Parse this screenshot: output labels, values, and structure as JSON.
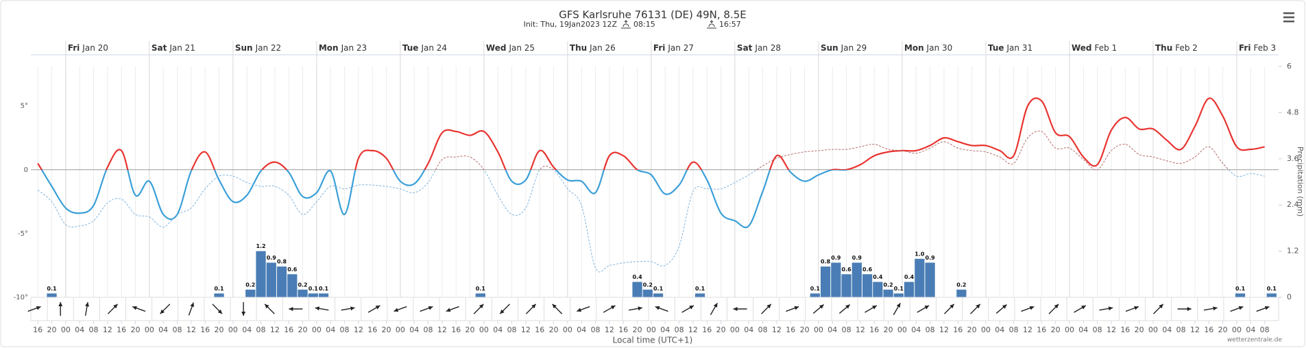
{
  "chart_data": {
    "type": "line",
    "title": "GFS Karlsruhe 76131 (DE) 49N, 8.5E",
    "subtitle": "Init: Thu, 19Jan2023 12Z",
    "sunrise": "08:15",
    "sunset": "16:57",
    "xlabel": "Local time (UTC+1)",
    "y2label": "Precipitation (mm)",
    "credit": "wetterzentrale.de",
    "days": [
      {
        "x": 0,
        "weekday": "Fri",
        "date": "Jan 20"
      },
      {
        "x": 24,
        "weekday": "Sat",
        "date": "Jan 21"
      },
      {
        "x": 48,
        "weekday": "Sun",
        "date": "Jan 22"
      },
      {
        "x": 72,
        "weekday": "Mon",
        "date": "Jan 23"
      },
      {
        "x": 96,
        "weekday": "Tue",
        "date": "Jan 24"
      },
      {
        "x": 120,
        "weekday": "Wed",
        "date": "Jan 25"
      },
      {
        "x": 144,
        "weekday": "Thu",
        "date": "Jan 26"
      },
      {
        "x": 168,
        "weekday": "Fri",
        "date": "Jan 27"
      },
      {
        "x": 192,
        "weekday": "Sat",
        "date": "Jan 28"
      },
      {
        "x": 216,
        "weekday": "Sun",
        "date": "Jan 29"
      },
      {
        "x": 240,
        "weekday": "Mon",
        "date": "Jan 30"
      },
      {
        "x": 264,
        "weekday": "Tue",
        "date": "Jan 31"
      },
      {
        "x": 288,
        "weekday": "Wed",
        "date": "Feb 1"
      },
      {
        "x": 312,
        "weekday": "Thu",
        "date": "Feb 2"
      },
      {
        "x": 336,
        "weekday": "Fri",
        "date": "Feb 3"
      }
    ],
    "xlim": [
      -10,
      348
    ],
    "xticks": [
      {
        "value": -8,
        "label": "16"
      },
      {
        "value": -4,
        "label": "20"
      },
      {
        "value": 0,
        "label": "00"
      },
      {
        "value": 4,
        "label": "04"
      },
      {
        "value": 8,
        "label": "08"
      },
      {
        "value": 12,
        "label": "12"
      },
      {
        "value": 16,
        "label": "16"
      },
      {
        "value": 20,
        "label": "20"
      },
      {
        "value": 24,
        "label": "00"
      },
      {
        "value": 28,
        "label": "04"
      },
      {
        "value": 32,
        "label": "08"
      },
      {
        "value": 36,
        "label": "12"
      },
      {
        "value": 40,
        "label": "16"
      },
      {
        "value": 44,
        "label": "20"
      },
      {
        "value": 48,
        "label": "00"
      },
      {
        "value": 52,
        "label": "04"
      },
      {
        "value": 56,
        "label": "08"
      },
      {
        "value": 60,
        "label": "12"
      },
      {
        "value": 64,
        "label": "16"
      },
      {
        "value": 68,
        "label": "20"
      },
      {
        "value": 72,
        "label": "00"
      },
      {
        "value": 76,
        "label": "04"
      },
      {
        "value": 80,
        "label": "08"
      },
      {
        "value": 84,
        "label": "12"
      },
      {
        "value": 88,
        "label": "16"
      },
      {
        "value": 92,
        "label": "20"
      },
      {
        "value": 96,
        "label": "00"
      },
      {
        "value": 100,
        "label": "04"
      },
      {
        "value": 104,
        "label": "08"
      },
      {
        "value": 108,
        "label": "12"
      },
      {
        "value": 112,
        "label": "16"
      },
      {
        "value": 116,
        "label": "20"
      },
      {
        "value": 120,
        "label": "00"
      },
      {
        "value": 124,
        "label": "04"
      },
      {
        "value": 128,
        "label": "08"
      },
      {
        "value": 132,
        "label": "12"
      },
      {
        "value": 136,
        "label": "16"
      },
      {
        "value": 140,
        "label": "20"
      },
      {
        "value": 144,
        "label": "00"
      },
      {
        "value": 148,
        "label": "04"
      },
      {
        "value": 152,
        "label": "08"
      },
      {
        "value": 156,
        "label": "12"
      },
      {
        "value": 160,
        "label": "16"
      },
      {
        "value": 164,
        "label": "20"
      },
      {
        "value": 168,
        "label": "00"
      },
      {
        "value": 172,
        "label": "04"
      },
      {
        "value": 176,
        "label": "08"
      },
      {
        "value": 180,
        "label": "12"
      },
      {
        "value": 184,
        "label": "16"
      },
      {
        "value": 188,
        "label": "20"
      },
      {
        "value": 192,
        "label": "00"
      },
      {
        "value": 196,
        "label": "04"
      },
      {
        "value": 200,
        "label": "08"
      },
      {
        "value": 204,
        "label": "12"
      },
      {
        "value": 208,
        "label": "16"
      },
      {
        "value": 212,
        "label": "20"
      },
      {
        "value": 216,
        "label": "00"
      },
      {
        "value": 220,
        "label": "04"
      },
      {
        "value": 224,
        "label": "08"
      },
      {
        "value": 228,
        "label": "12"
      },
      {
        "value": 232,
        "label": "16"
      },
      {
        "value": 236,
        "label": "20"
      },
      {
        "value": 240,
        "label": "00"
      },
      {
        "value": 244,
        "label": "04"
      },
      {
        "value": 248,
        "label": "08"
      },
      {
        "value": 252,
        "label": "12"
      },
      {
        "value": 256,
        "label": "16"
      },
      {
        "value": 260,
        "label": "20"
      },
      {
        "value": 264,
        "label": "00"
      },
      {
        "value": 268,
        "label": "04"
      },
      {
        "value": 272,
        "label": "08"
      },
      {
        "value": 276,
        "label": "12"
      },
      {
        "value": 280,
        "label": "16"
      },
      {
        "value": 284,
        "label": "20"
      },
      {
        "value": 288,
        "label": "00"
      },
      {
        "value": 292,
        "label": "04"
      },
      {
        "value": 296,
        "label": "08"
      },
      {
        "value": 300,
        "label": "12"
      },
      {
        "value": 304,
        "label": "16"
      },
      {
        "value": 308,
        "label": "20"
      },
      {
        "value": 312,
        "label": "00"
      },
      {
        "value": 316,
        "label": "04"
      },
      {
        "value": 320,
        "label": "08"
      },
      {
        "value": 324,
        "label": "12"
      },
      {
        "value": 328,
        "label": "16"
      },
      {
        "value": 332,
        "label": "20"
      },
      {
        "value": 336,
        "label": "00"
      },
      {
        "value": 340,
        "label": "04"
      },
      {
        "value": 344,
        "label": "08"
      }
    ],
    "ylim": [
      -10,
      8.1
    ],
    "yticks": [
      {
        "value": 5,
        "label": "5°"
      },
      0,
      {
        "value": -5,
        "label": "-5°"
      },
      {
        "value": -10,
        "label": "-10°"
      }
    ],
    "y2lim": [
      0,
      6
    ],
    "y2ticks": [
      6,
      4.8,
      3.6,
      2.4,
      1.2,
      0
    ],
    "x": [
      -8,
      -4,
      0,
      4,
      8,
      12,
      16,
      20,
      24,
      28,
      32,
      36,
      40,
      44,
      48,
      52,
      56,
      60,
      64,
      68,
      72,
      76,
      80,
      84,
      88,
      92,
      96,
      100,
      104,
      108,
      112,
      116,
      120,
      124,
      128,
      132,
      136,
      140,
      144,
      148,
      152,
      156,
      160,
      164,
      168,
      172,
      176,
      180,
      184,
      188,
      192,
      196,
      200,
      204,
      208,
      212,
      216,
      220,
      224,
      228,
      232,
      236,
      240,
      244,
      248,
      252,
      256,
      260,
      264,
      268,
      272,
      276,
      280,
      284,
      288,
      292,
      296,
      300,
      304,
      308,
      312,
      316,
      320,
      324,
      328,
      332,
      336,
      340,
      344
    ],
    "series": [
      {
        "color": {
          "above": "#e8332f",
          "below": "#3a9fd8"
        },
        "width": 2.2,
        "dashed": false,
        "values": [
          0.5,
          -1.3,
          -3.0,
          -3.4,
          -2.8,
          0.2,
          1.5,
          -2.0,
          -0.9,
          -3.5,
          -3.5,
          -0.1,
          1.4,
          -0.8,
          -2.5,
          -2.0,
          -0.1,
          0.6,
          -0.2,
          -2.1,
          -1.8,
          -0.1,
          -3.5,
          0.9,
          1.5,
          0.9,
          -0.9,
          -1.1,
          0.5,
          2.9,
          3.0,
          2.7,
          3.0,
          1.4,
          -0.9,
          -0.8,
          1.5,
          0.2,
          -0.8,
          -0.9,
          -1.8,
          1.1,
          1.1,
          0.0,
          -0.4,
          -1.9,
          -1.2,
          0.6,
          -0.8,
          -3.4,
          -4.0,
          -4.4,
          -1.7,
          1.1,
          -0.2,
          -0.9,
          -0.4,
          0.0,
          0.0,
          0.4,
          1.1,
          1.4,
          1.5,
          1.5,
          1.9,
          2.5,
          2.2,
          1.9,
          1.9,
          1.5,
          1.1,
          5.0,
          5.4,
          2.9,
          2.6,
          1.0,
          0.4,
          3.1,
          4.1,
          3.2,
          3.2,
          2.3,
          1.6,
          3.4,
          5.6,
          4.2,
          1.8,
          1.6,
          1.8
        ]
      },
      {
        "color": {
          "above": "#b56a6a",
          "below": "#7fb3dc"
        },
        "width": 1,
        "dashed": true,
        "values": [
          -1.6,
          -2.5,
          -4.3,
          -4.4,
          -4.0,
          -2.6,
          -2.3,
          -3.5,
          -3.7,
          -4.5,
          -3.5,
          -3.0,
          -1.5,
          -0.5,
          -0.5,
          -1.0,
          -1.3,
          -1.3,
          -2.0,
          -3.5,
          -2.5,
          -1.3,
          -1.5,
          -1.2,
          -1.2,
          -1.3,
          -1.5,
          -1.8,
          -1.0,
          0.8,
          1.0,
          1.0,
          0.0,
          -2.0,
          -3.5,
          -3.0,
          0.0,
          0.0,
          -1.5,
          -2.8,
          -7.7,
          -7.5,
          -7.3,
          -7.2,
          -7.2,
          -7.5,
          -6.0,
          -1.7,
          -1.5,
          -1.5,
          -1.0,
          -0.4,
          0.3,
          0.9,
          1.2,
          1.4,
          1.5,
          1.6,
          1.6,
          1.8,
          2.0,
          1.6,
          1.5,
          1.3,
          1.7,
          2.2,
          1.7,
          1.5,
          1.4,
          1.0,
          0.5,
          2.5,
          3.0,
          1.7,
          1.7,
          0.8,
          0.0,
          1.5,
          2.0,
          1.2,
          1.0,
          0.7,
          0.5,
          1.0,
          1.8,
          0.5,
          -0.5,
          -0.3,
          -0.5
        ]
      }
    ],
    "precipitation": {
      "type": "bar",
      "axis": "y2",
      "color": "#4a7db5",
      "width": 3,
      "x": [
        -4,
        44,
        53,
        56,
        59,
        62,
        65,
        68,
        71,
        74,
        119,
        164,
        167,
        170,
        182,
        215,
        218,
        221,
        224,
        227,
        230,
        233,
        236,
        239,
        242,
        245,
        248,
        257,
        337,
        346
      ],
      "values": [
        0.1,
        0.1,
        0.2,
        1.2,
        0.9,
        0.8,
        0.6,
        0.2,
        0.1,
        0.1,
        0.1,
        0.4,
        0.2,
        0.1,
        0.1,
        0.1,
        0.8,
        0.9,
        0.6,
        0.9,
        0.6,
        0.4,
        0.2,
        0.1,
        0.4,
        1.0,
        0.9,
        0.2,
        0.1,
        0.1
      ],
      "value_labels": [
        "0.1",
        "0.1",
        "0.2",
        "1.2",
        "0.9",
        "0.8",
        "0.6",
        "0.2",
        "0.1",
        "0.1",
        "0.1",
        "0.4",
        "0.2",
        "0.1",
        "0.1",
        "0.1",
        "0.8",
        "0.9",
        "0.6",
        "0.9",
        "0.6",
        "0.4",
        "0.2",
        "0.1",
        "0.4",
        "1.0",
        "0.9",
        "0.2",
        "0.1",
        "0.1"
      ]
    },
    "wind": {
      "x": [
        -9,
        -1.5,
        6,
        13.5,
        21,
        28.5,
        36,
        43.5,
        51,
        58.5,
        66,
        73.5,
        81,
        88.5,
        96,
        103.5,
        111,
        118.5,
        126,
        133.5,
        141,
        148.5,
        156,
        163.5,
        171,
        178.5,
        186,
        193.5,
        201,
        208.5,
        216,
        223.5,
        231,
        238.5,
        246,
        253.5,
        261,
        268.5,
        276,
        283.5,
        291,
        298.5,
        306,
        313.5,
        321,
        328.5,
        336,
        343.5
      ],
      "direction": [
        20,
        90,
        80,
        45,
        160,
        225,
        70,
        315,
        270,
        135,
        180,
        170,
        10,
        30,
        200,
        20,
        200,
        45,
        225,
        45,
        135,
        200,
        30,
        10,
        160,
        30,
        60,
        180,
        45,
        20,
        40,
        40,
        30,
        60,
        30,
        45,
        45,
        40,
        20,
        45,
        30,
        10,
        20,
        45,
        0,
        10,
        20,
        20
      ]
    },
    "grid": true
  }
}
